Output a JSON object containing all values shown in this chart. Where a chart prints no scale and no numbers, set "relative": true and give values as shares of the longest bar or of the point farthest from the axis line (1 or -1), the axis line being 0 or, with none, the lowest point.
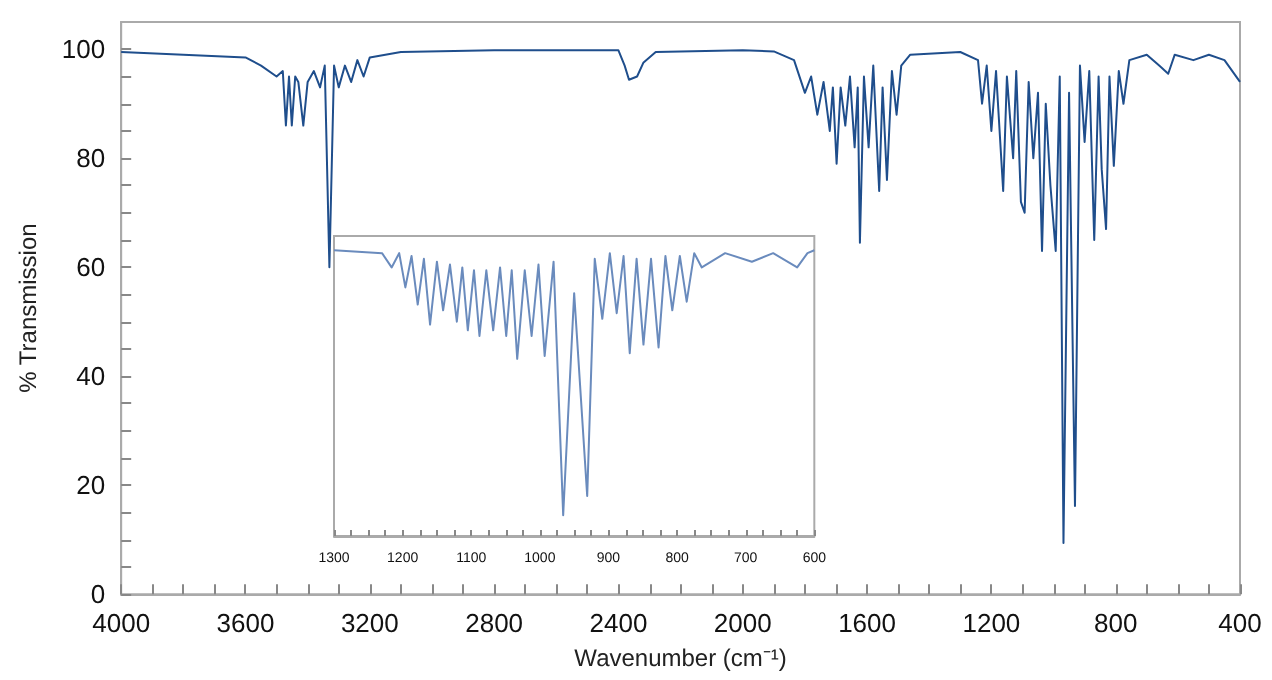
{
  "chart_data": [
    {
      "type": "line",
      "xlabel": "Wavenumber (cm⁻¹)",
      "ylabel": "% Transmission",
      "xlim": [
        4000,
        400
      ],
      "ylim": [
        0,
        105
      ],
      "xticks": [
        4000,
        {
          "value": 3900,
          "label": null
        },
        {
          "value": 3800,
          "label": null
        },
        {
          "value": 3700,
          "label": null
        },
        3600,
        {
          "value": 3500,
          "label": null
        },
        {
          "value": 3400,
          "label": null
        },
        {
          "value": 3300,
          "label": null
        },
        3200,
        {
          "value": 3100,
          "label": null
        },
        {
          "value": 3000,
          "label": null
        },
        {
          "value": 2900,
          "label": null
        },
        2800,
        {
          "value": 2700,
          "label": null
        },
        {
          "value": 2600,
          "label": null
        },
        {
          "value": 2500,
          "label": null
        },
        2400,
        {
          "value": 2300,
          "label": null
        },
        {
          "value": 2200,
          "label": null
        },
        {
          "value": 2100,
          "label": null
        },
        2000,
        {
          "value": 1900,
          "label": null
        },
        {
          "value": 1800,
          "label": null
        },
        {
          "value": 1700,
          "label": null
        },
        1600,
        {
          "value": 1500,
          "label": null
        },
        {
          "value": 1400,
          "label": null
        },
        {
          "value": 1300,
          "label": null
        },
        1200,
        {
          "value": 1100,
          "label": null
        },
        {
          "value": 1000,
          "label": null
        },
        {
          "value": 900,
          "label": null
        },
        800,
        {
          "value": 700,
          "label": null
        },
        {
          "value": 600,
          "label": null
        },
        {
          "value": 500,
          "label": null
        },
        400
      ],
      "yticks": [
        0,
        {
          "value": 5,
          "label": null
        },
        {
          "value": 10,
          "label": null
        },
        {
          "value": 15,
          "label": null
        },
        20,
        {
          "value": 25,
          "label": null
        },
        {
          "value": 30,
          "label": null
        },
        {
          "value": 35,
          "label": null
        },
        40,
        {
          "value": 45,
          "label": null
        },
        {
          "value": 50,
          "label": null
        },
        {
          "value": 55,
          "label": null
        },
        60,
        {
          "value": 65,
          "label": null
        },
        {
          "value": 70,
          "label": null
        },
        {
          "value": 75,
          "label": null
        },
        80,
        {
          "value": 85,
          "label": null
        },
        {
          "value": 90,
          "label": null
        },
        {
          "value": 95,
          "label": null
        },
        100
      ],
      "grid": false,
      "marker": "none",
      "line_style": "solid",
      "series": [
        {
          "color": "#1f4e8c",
          "x": [
            4000,
            3800,
            3600,
            3550,
            3500,
            3480,
            3470,
            3460,
            3451,
            3440,
            3430,
            3414,
            3400,
            3380,
            3360,
            3345,
            3330,
            3315,
            3300,
            3280,
            3260,
            3240,
            3220,
            3200,
            3100,
            2800,
            2400,
            2380,
            2366,
            2340,
            2320,
            2280,
            2000,
            1900,
            1835,
            1800,
            1780,
            1760,
            1740,
            1720,
            1710,
            1698,
            1685,
            1670,
            1655,
            1640,
            1630,
            1623,
            1610,
            1595,
            1580,
            1561,
            1550,
            1536,
            1520,
            1505,
            1490,
            1461,
            1300,
            1243,
            1230,
            1215,
            1200,
            1185,
            1162,
            1150,
            1130,
            1120,
            1105,
            1093,
            1080,
            1065,
            1050,
            1037,
            1025,
            1010,
            993,
            980,
            968,
            950,
            931,
            915,
            900,
            885,
            869,
            855,
            845,
            831,
            820,
            806,
            790,
            775,
            756,
            700,
            660,
            631,
            610,
            550,
            500,
            450,
            400
          ],
          "values": [
            99.5,
            99,
            98.5,
            97,
            95,
            96,
            86,
            95,
            86,
            95,
            94,
            86,
            94,
            96,
            93,
            97,
            60,
            97,
            93,
            97,
            94,
            98,
            95,
            98.5,
            99.5,
            99.8,
            99.8,
            97,
            94.4,
            95,
            97.5,
            99.5,
            99.8,
            99.6,
            98,
            92,
            95,
            88,
            94,
            85,
            93,
            79,
            93,
            86,
            95,
            82,
            93,
            64.5,
            95,
            82,
            97,
            74,
            93,
            76,
            96,
            88,
            97,
            99,
            99.5,
            98,
            90,
            97,
            85,
            96,
            74,
            95,
            80,
            96,
            72,
            70,
            94,
            80,
            92,
            63,
            90,
            75,
            63,
            95,
            9.4,
            92,
            16.2,
            97,
            83,
            96,
            65,
            95,
            78,
            67,
            95,
            78.6,
            96,
            90,
            98,
            99,
            97,
            95.5,
            99,
            98,
            99,
            98,
            94
          ]
        }
      ]
    },
    {
      "type": "line",
      "relative": true,
      "tick_labels": "x",
      "xlim": [
        1300,
        600
      ],
      "xticks": [
        1300,
        {
          "value": 1275,
          "label": null
        },
        {
          "value": 1250,
          "label": null
        },
        {
          "value": 1225,
          "label": null
        },
        1200,
        {
          "value": 1175,
          "label": null
        },
        {
          "value": 1150,
          "label": null
        },
        {
          "value": 1125,
          "label": null
        },
        1100,
        {
          "value": 1075,
          "label": null
        },
        {
          "value": 1050,
          "label": null
        },
        {
          "value": 1025,
          "label": null
        },
        1000,
        {
          "value": 975,
          "label": null
        },
        {
          "value": 950,
          "label": null
        },
        {
          "value": 925,
          "label": null
        },
        900,
        {
          "value": 875,
          "label": null
        },
        {
          "value": 850,
          "label": null
        },
        {
          "value": 825,
          "label": null
        },
        800,
        {
          "value": 775,
          "label": null
        },
        {
          "value": 750,
          "label": null
        },
        {
          "value": 725,
          "label": null
        },
        700,
        {
          "value": 675,
          "label": null
        },
        {
          "value": 650,
          "label": null
        },
        {
          "value": 625,
          "label": null
        },
        600
      ],
      "grid": false,
      "marker": "none",
      "line_style": "solid",
      "series": [
        {
          "color": "#6a8bbd",
          "x": [
            1300,
            1230,
            1216,
            1205,
            1196,
            1187,
            1178,
            1169,
            1160,
            1150,
            1141,
            1131,
            1121,
            1113,
            1105,
            1096,
            1088,
            1078,
            1068,
            1058,
            1049,
            1041,
            1033,
            1022,
            1012,
            1002,
            993,
            980,
            966,
            950,
            931,
            920,
            909,
            898,
            888,
            878,
            869,
            859,
            849,
            838,
            827,
            817,
            807,
            796,
            786,
            775,
            764,
            730,
            691,
            660,
            625,
            610,
            600
          ],
          "values": [
            1,
            0.99,
            0.94,
            0.99,
            0.87,
            0.98,
            0.81,
            0.97,
            0.74,
            0.96,
            0.79,
            0.95,
            0.75,
            0.94,
            0.72,
            0.93,
            0.7,
            0.93,
            0.72,
            0.94,
            0.7,
            0.93,
            0.62,
            0.93,
            0.7,
            0.95,
            0.63,
            0.96,
            0.073,
            0.85,
            0.14,
            0.97,
            0.76,
            0.99,
            0.78,
            0.98,
            0.64,
            0.97,
            0.67,
            0.97,
            0.66,
            0.98,
            0.79,
            0.98,
            0.82,
            0.99,
            0.94,
            0.99,
            0.96,
            0.99,
            0.94,
            0.99,
            1
          ]
        }
      ]
    }
  ]
}
